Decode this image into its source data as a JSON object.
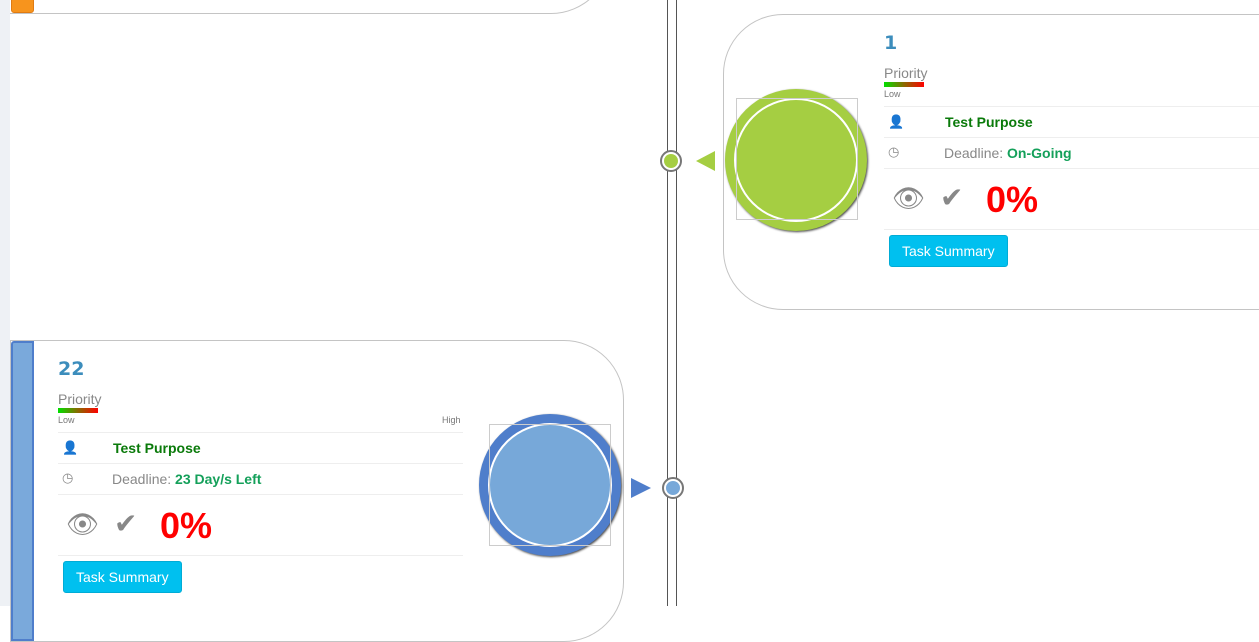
{
  "colors": {
    "accent_green": "#a5ce42",
    "accent_blue": "#77a8d9",
    "ring_blue": "#4f7ecb",
    "orange": "#f7941d",
    "button": "#00c0ef",
    "percent": "#ff0000"
  },
  "tasks": [
    {
      "number": "1",
      "priority_label": "Priority",
      "priority_low": "Low",
      "purpose": "Test Purpose",
      "deadline_label": "Deadline:",
      "deadline_value": "On-Going",
      "percent": "0%",
      "button": "Task Summary"
    },
    {
      "number": "22",
      "priority_label": "Priority",
      "priority_low": "Low",
      "priority_high": "High",
      "purpose": "Test Purpose",
      "deadline_label": "Deadline:",
      "deadline_value": "23 Day/s Left",
      "percent": "0%",
      "button": "Task Summary"
    }
  ],
  "icons": [
    "user-icon",
    "clock-icon",
    "eye-slash-icon",
    "check-icon",
    "broken-image-icon"
  ]
}
